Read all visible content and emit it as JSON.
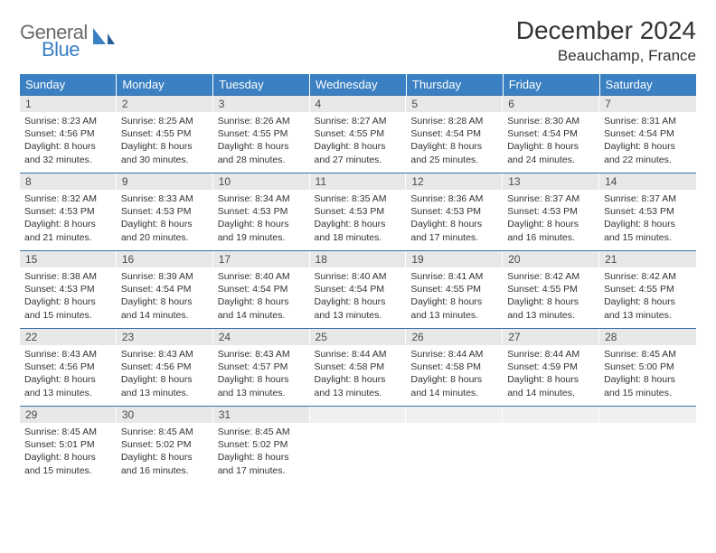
{
  "logo": {
    "line1": "General",
    "line2": "Blue"
  },
  "title": "December 2024",
  "location": "Beauchamp, France",
  "colors": {
    "header_bg": "#3a80c2",
    "header_fg": "#ffffff",
    "daynum_bg": "#e8e8e8",
    "rule": "#3a70a8",
    "logo_gray": "#6b6b6b",
    "logo_blue": "#3a80c2"
  },
  "weekdays": [
    "Sunday",
    "Monday",
    "Tuesday",
    "Wednesday",
    "Thursday",
    "Friday",
    "Saturday"
  ],
  "weeks": [
    [
      {
        "n": "1",
        "sr": "8:23 AM",
        "ss": "4:56 PM",
        "dl": "8 hours and 32 minutes."
      },
      {
        "n": "2",
        "sr": "8:25 AM",
        "ss": "4:55 PM",
        "dl": "8 hours and 30 minutes."
      },
      {
        "n": "3",
        "sr": "8:26 AM",
        "ss": "4:55 PM",
        "dl": "8 hours and 28 minutes."
      },
      {
        "n": "4",
        "sr": "8:27 AM",
        "ss": "4:55 PM",
        "dl": "8 hours and 27 minutes."
      },
      {
        "n": "5",
        "sr": "8:28 AM",
        "ss": "4:54 PM",
        "dl": "8 hours and 25 minutes."
      },
      {
        "n": "6",
        "sr": "8:30 AM",
        "ss": "4:54 PM",
        "dl": "8 hours and 24 minutes."
      },
      {
        "n": "7",
        "sr": "8:31 AM",
        "ss": "4:54 PM",
        "dl": "8 hours and 22 minutes."
      }
    ],
    [
      {
        "n": "8",
        "sr": "8:32 AM",
        "ss": "4:53 PM",
        "dl": "8 hours and 21 minutes."
      },
      {
        "n": "9",
        "sr": "8:33 AM",
        "ss": "4:53 PM",
        "dl": "8 hours and 20 minutes."
      },
      {
        "n": "10",
        "sr": "8:34 AM",
        "ss": "4:53 PM",
        "dl": "8 hours and 19 minutes."
      },
      {
        "n": "11",
        "sr": "8:35 AM",
        "ss": "4:53 PM",
        "dl": "8 hours and 18 minutes."
      },
      {
        "n": "12",
        "sr": "8:36 AM",
        "ss": "4:53 PM",
        "dl": "8 hours and 17 minutes."
      },
      {
        "n": "13",
        "sr": "8:37 AM",
        "ss": "4:53 PM",
        "dl": "8 hours and 16 minutes."
      },
      {
        "n": "14",
        "sr": "8:37 AM",
        "ss": "4:53 PM",
        "dl": "8 hours and 15 minutes."
      }
    ],
    [
      {
        "n": "15",
        "sr": "8:38 AM",
        "ss": "4:53 PM",
        "dl": "8 hours and 15 minutes."
      },
      {
        "n": "16",
        "sr": "8:39 AM",
        "ss": "4:54 PM",
        "dl": "8 hours and 14 minutes."
      },
      {
        "n": "17",
        "sr": "8:40 AM",
        "ss": "4:54 PM",
        "dl": "8 hours and 14 minutes."
      },
      {
        "n": "18",
        "sr": "8:40 AM",
        "ss": "4:54 PM",
        "dl": "8 hours and 13 minutes."
      },
      {
        "n": "19",
        "sr": "8:41 AM",
        "ss": "4:55 PM",
        "dl": "8 hours and 13 minutes."
      },
      {
        "n": "20",
        "sr": "8:42 AM",
        "ss": "4:55 PM",
        "dl": "8 hours and 13 minutes."
      },
      {
        "n": "21",
        "sr": "8:42 AM",
        "ss": "4:55 PM",
        "dl": "8 hours and 13 minutes."
      }
    ],
    [
      {
        "n": "22",
        "sr": "8:43 AM",
        "ss": "4:56 PM",
        "dl": "8 hours and 13 minutes."
      },
      {
        "n": "23",
        "sr": "8:43 AM",
        "ss": "4:56 PM",
        "dl": "8 hours and 13 minutes."
      },
      {
        "n": "24",
        "sr": "8:43 AM",
        "ss": "4:57 PM",
        "dl": "8 hours and 13 minutes."
      },
      {
        "n": "25",
        "sr": "8:44 AM",
        "ss": "4:58 PM",
        "dl": "8 hours and 13 minutes."
      },
      {
        "n": "26",
        "sr": "8:44 AM",
        "ss": "4:58 PM",
        "dl": "8 hours and 14 minutes."
      },
      {
        "n": "27",
        "sr": "8:44 AM",
        "ss": "4:59 PM",
        "dl": "8 hours and 14 minutes."
      },
      {
        "n": "28",
        "sr": "8:45 AM",
        "ss": "5:00 PM",
        "dl": "8 hours and 15 minutes."
      }
    ],
    [
      {
        "n": "29",
        "sr": "8:45 AM",
        "ss": "5:01 PM",
        "dl": "8 hours and 15 minutes."
      },
      {
        "n": "30",
        "sr": "8:45 AM",
        "ss": "5:02 PM",
        "dl": "8 hours and 16 minutes."
      },
      {
        "n": "31",
        "sr": "8:45 AM",
        "ss": "5:02 PM",
        "dl": "8 hours and 17 minutes."
      },
      null,
      null,
      null,
      null
    ]
  ],
  "labels": {
    "sunrise": "Sunrise:",
    "sunset": "Sunset:",
    "daylight": "Daylight:"
  }
}
